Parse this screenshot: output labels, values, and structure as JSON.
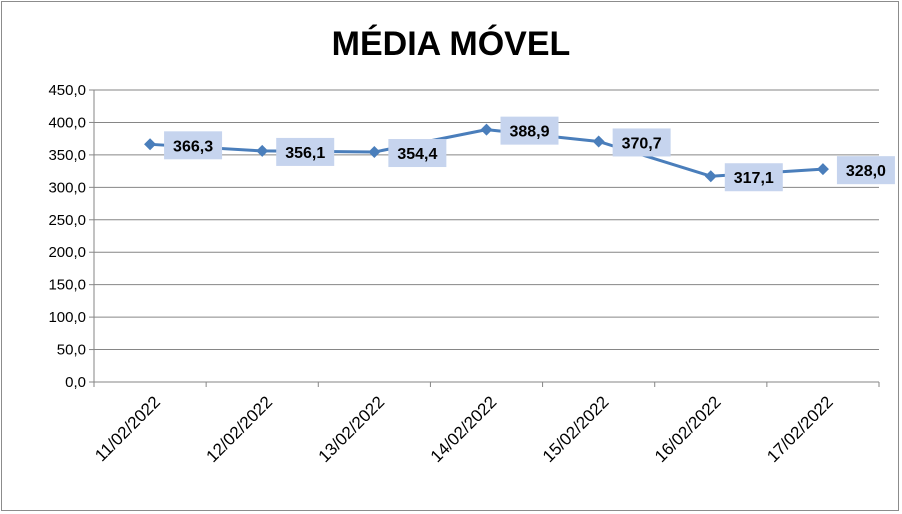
{
  "chart_data": {
    "type": "line",
    "title": "MÉDIA MÓVEL",
    "xlabel": "",
    "ylabel": "",
    "categories": [
      "11/02/2022",
      "12/02/2022",
      "13/02/2022",
      "14/02/2022",
      "15/02/2022",
      "16/02/2022",
      "17/02/2022"
    ],
    "series": [
      {
        "values": [
          366.3,
          356.1,
          354.4,
          388.9,
          370.7,
          317.1,
          328.0
        ],
        "labels": [
          "366,3",
          "356,1",
          "354,4",
          "388,9",
          "370,7",
          "317,1",
          "328,0"
        ],
        "color": "#4a7ebb",
        "marker": "diamond"
      }
    ],
    "ylim": [
      0,
      450
    ],
    "yticks": [
      0,
      50,
      100,
      150,
      200,
      250,
      300,
      350,
      400,
      450
    ],
    "ytick_labels": [
      "0,0",
      "50,0",
      "100,0",
      "150,0",
      "200,0",
      "250,0",
      "300,0",
      "350,0",
      "400,0",
      "450,0"
    ],
    "grid": true,
    "legend": "none",
    "colors": {
      "line": "#4a7ebb",
      "gridline": "#868686",
      "label_box": "#c6d4ee"
    }
  }
}
